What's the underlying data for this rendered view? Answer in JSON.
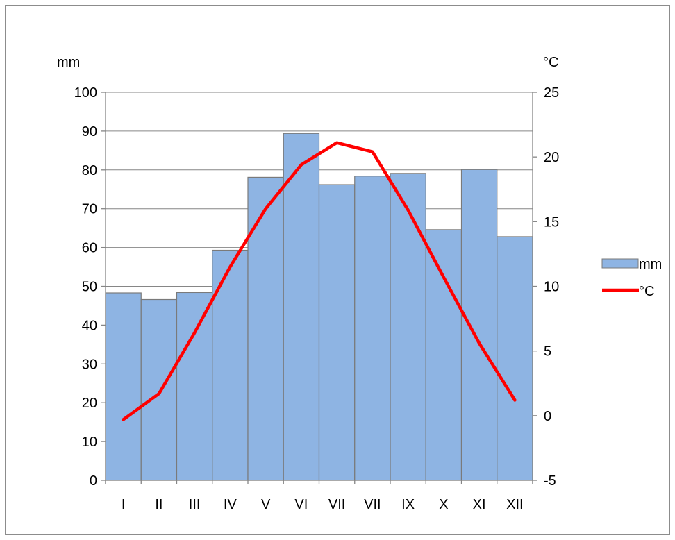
{
  "chart_data": {
    "type": "bar",
    "categories": [
      "I",
      "II",
      "III",
      "IV",
      "V",
      "VI",
      "VII",
      "VII",
      "IX",
      "X",
      "XI",
      "XII"
    ],
    "series": [
      {
        "name": "mm",
        "type": "bar",
        "axis": "left",
        "color": "#8EB4E3",
        "values": [
          48.3,
          46.6,
          48.4,
          59.3,
          78.1,
          89.4,
          76.2,
          78.4,
          79.1,
          64.6,
          80.1,
          62.8
        ]
      },
      {
        "name": "°C",
        "type": "line",
        "axis": "right",
        "color": "#FF0000",
        "values": [
          -0.3,
          1.7,
          6.4,
          11.5,
          16.0,
          19.4,
          21.1,
          20.4,
          15.9,
          10.7,
          5.6,
          1.2
        ]
      }
    ],
    "ylabel": "mm",
    "y2label": "°C",
    "ylim": [
      0,
      100
    ],
    "y2lim": [
      -5,
      25
    ],
    "yticks": [
      "0",
      "10",
      "20",
      "30",
      "40",
      "50",
      "60",
      "70",
      "80",
      "90",
      "100"
    ],
    "y2ticks": [
      "-5",
      "0",
      "5",
      "10",
      "15",
      "20",
      "25"
    ],
    "grid": true,
    "legend": "right"
  }
}
